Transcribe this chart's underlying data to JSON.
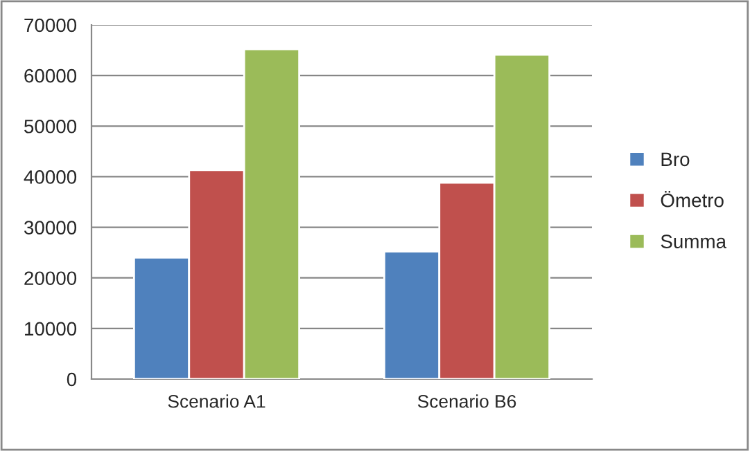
{
  "chart_data": {
    "type": "bar",
    "categories": [
      "Scenario A1",
      "Scenario B6"
    ],
    "series": [
      {
        "name": "Bro",
        "color": "#4f81bd",
        "values": [
          24000,
          25200
        ]
      },
      {
        "name": "Ömetro",
        "color": "#c0504d",
        "values": [
          41300,
          38800
        ]
      },
      {
        "name": "Summa",
        "color": "#9bbb59",
        "values": [
          65200,
          64100
        ]
      }
    ],
    "ylim": [
      0,
      70000
    ],
    "yticks": [
      0,
      10000,
      20000,
      30000,
      40000,
      50000,
      60000,
      70000
    ],
    "grid": "y",
    "legend": "right"
  }
}
